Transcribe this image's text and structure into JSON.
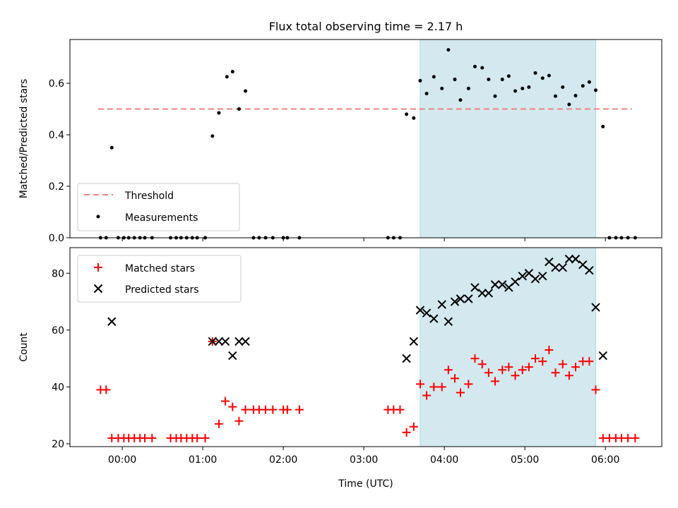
{
  "chart_data": {
    "title": "Flux total observing time = 2.17 h",
    "xlabel": "Time (UTC)",
    "x_ticks": [
      "00:00",
      "01:00",
      "02:00",
      "03:00",
      "04:00",
      "05:00",
      "06:00"
    ],
    "x_tick_hours": [
      0,
      1,
      2,
      3,
      4,
      5,
      6
    ],
    "xlim_hours": [
      -0.65,
      6.7
    ],
    "observing_window_hours": [
      3.7,
      5.88
    ],
    "window_color": "#d3e9ef",
    "panels": [
      {
        "type": "scatter",
        "ylabel": "Matched/Predicted stars",
        "ylim": [
          0,
          0.77
        ],
        "y_ticks": [
          0.0,
          0.2,
          0.4,
          0.6
        ],
        "y_tick_labels": [
          "0.0",
          "0.2",
          "0.4",
          "0.6"
        ],
        "legend": {
          "placement": "lower-left",
          "entries": [
            "Threshold",
            "Measurements"
          ]
        },
        "threshold": {
          "name": "Threshold",
          "value": 0.5,
          "x_range": [
            -0.3,
            6.33
          ],
          "color": "#f08080"
        },
        "series": [
          {
            "name": "Measurements",
            "color": "#000000",
            "marker": "dot",
            "points": [
              [
                -0.27,
                0
              ],
              [
                -0.2,
                0
              ],
              [
                -0.13,
                0.35
              ],
              [
                -0.05,
                0
              ],
              [
                0.02,
                0
              ],
              [
                0.08,
                0
              ],
              [
                0.15,
                0
              ],
              [
                0.22,
                0
              ],
              [
                0.28,
                0
              ],
              [
                0.37,
                0
              ],
              [
                0.6,
                0
              ],
              [
                0.67,
                0
              ],
              [
                0.73,
                0
              ],
              [
                0.8,
                0
              ],
              [
                0.87,
                0
              ],
              [
                0.93,
                0
              ],
              [
                1.03,
                0
              ],
              [
                1.12,
                0.395
              ],
              [
                1.2,
                0.485
              ],
              [
                1.3,
                0.625
              ],
              [
                1.37,
                0.645
              ],
              [
                1.45,
                0.5
              ],
              [
                1.53,
                0.57
              ],
              [
                1.63,
                0
              ],
              [
                1.7,
                0
              ],
              [
                1.78,
                0
              ],
              [
                1.87,
                0
              ],
              [
                2.0,
                0
              ],
              [
                2.05,
                0
              ],
              [
                2.2,
                0
              ],
              [
                3.3,
                0
              ],
              [
                3.37,
                0
              ],
              [
                3.45,
                0
              ],
              [
                3.53,
                0.48
              ],
              [
                3.62,
                0.465
              ],
              [
                3.7,
                0.61
              ],
              [
                3.78,
                0.56
              ],
              [
                3.87,
                0.625
              ],
              [
                3.97,
                0.58
              ],
              [
                4.05,
                0.73
              ],
              [
                4.13,
                0.615
              ],
              [
                4.2,
                0.535
              ],
              [
                4.3,
                0.58
              ],
              [
                4.38,
                0.665
              ],
              [
                4.47,
                0.66
              ],
              [
                4.55,
                0.615
              ],
              [
                4.63,
                0.55
              ],
              [
                4.72,
                0.615
              ],
              [
                4.8,
                0.628
              ],
              [
                4.88,
                0.57
              ],
              [
                4.97,
                0.58
              ],
              [
                5.05,
                0.585
              ],
              [
                5.13,
                0.64
              ],
              [
                5.22,
                0.62
              ],
              [
                5.3,
                0.63
              ],
              [
                5.38,
                0.55
              ],
              [
                5.47,
                0.585
              ],
              [
                5.55,
                0.518
              ],
              [
                5.63,
                0.552
              ],
              [
                5.72,
                0.59
              ],
              [
                5.8,
                0.605
              ],
              [
                5.88,
                0.573
              ],
              [
                5.97,
                0.432
              ],
              [
                6.05,
                0
              ],
              [
                6.13,
                0
              ],
              [
                6.2,
                0
              ],
              [
                6.28,
                0
              ],
              [
                6.37,
                0
              ]
            ]
          }
        ]
      },
      {
        "type": "scatter",
        "ylabel": "Count",
        "ylim": [
          19,
          89
        ],
        "y_ticks": [
          20,
          40,
          60,
          80
        ],
        "y_tick_labels": [
          "20",
          "40",
          "60",
          "80"
        ],
        "legend": {
          "placement": "upper-left",
          "entries": [
            "Matched stars",
            "Predicted stars"
          ]
        },
        "series": [
          {
            "name": "Matched stars",
            "color": "#ff0000",
            "marker": "plus",
            "points": [
              [
                -0.27,
                39
              ],
              [
                -0.2,
                39
              ],
              [
                -0.13,
                22
              ],
              [
                -0.05,
                22
              ],
              [
                0.02,
                22
              ],
              [
                0.08,
                22
              ],
              [
                0.15,
                22
              ],
              [
                0.22,
                22
              ],
              [
                0.28,
                22
              ],
              [
                0.37,
                22
              ],
              [
                0.6,
                22
              ],
              [
                0.67,
                22
              ],
              [
                0.73,
                22
              ],
              [
                0.8,
                22
              ],
              [
                0.87,
                22
              ],
              [
                0.93,
                22
              ],
              [
                1.03,
                22
              ],
              [
                1.12,
                56
              ],
              [
                1.2,
                27
              ],
              [
                1.28,
                35
              ],
              [
                1.37,
                33
              ],
              [
                1.45,
                28
              ],
              [
                1.53,
                32
              ],
              [
                1.63,
                32
              ],
              [
                1.7,
                32
              ],
              [
                1.78,
                32
              ],
              [
                1.87,
                32
              ],
              [
                2.0,
                32
              ],
              [
                2.05,
                32
              ],
              [
                2.2,
                32
              ],
              [
                3.3,
                32
              ],
              [
                3.37,
                32
              ],
              [
                3.45,
                32
              ],
              [
                3.53,
                24
              ],
              [
                3.62,
                26
              ],
              [
                3.7,
                41
              ],
              [
                3.78,
                37
              ],
              [
                3.87,
                40
              ],
              [
                3.97,
                40
              ],
              [
                4.05,
                46
              ],
              [
                4.13,
                43
              ],
              [
                4.2,
                38
              ],
              [
                4.3,
                41
              ],
              [
                4.38,
                50
              ],
              [
                4.47,
                48
              ],
              [
                4.55,
                45
              ],
              [
                4.63,
                42
              ],
              [
                4.72,
                46
              ],
              [
                4.8,
                47
              ],
              [
                4.88,
                44
              ],
              [
                4.97,
                46
              ],
              [
                5.05,
                47
              ],
              [
                5.13,
                50
              ],
              [
                5.22,
                49
              ],
              [
                5.3,
                53
              ],
              [
                5.38,
                45
              ],
              [
                5.47,
                48
              ],
              [
                5.55,
                44
              ],
              [
                5.63,
                47
              ],
              [
                5.72,
                49
              ],
              [
                5.8,
                49
              ],
              [
                5.88,
                39
              ],
              [
                5.97,
                22
              ],
              [
                6.05,
                22
              ],
              [
                6.13,
                22
              ],
              [
                6.2,
                22
              ],
              [
                6.28,
                22
              ],
              [
                6.37,
                22
              ]
            ]
          },
          {
            "name": "Predicted stars",
            "color": "#000000",
            "marker": "x",
            "points": [
              [
                -0.13,
                63
              ],
              [
                1.12,
                56
              ],
              [
                1.2,
                56
              ],
              [
                1.28,
                56
              ],
              [
                1.37,
                51
              ],
              [
                1.45,
                56
              ],
              [
                1.53,
                56
              ],
              [
                3.53,
                50
              ],
              [
                3.62,
                56
              ],
              [
                3.7,
                67
              ],
              [
                3.78,
                66
              ],
              [
                3.87,
                64
              ],
              [
                3.97,
                69
              ],
              [
                4.05,
                63
              ],
              [
                4.13,
                70
              ],
              [
                4.2,
                71
              ],
              [
                4.3,
                71
              ],
              [
                4.38,
                75
              ],
              [
                4.47,
                73
              ],
              [
                4.55,
                73
              ],
              [
                4.63,
                76
              ],
              [
                4.72,
                76
              ],
              [
                4.8,
                75
              ],
              [
                4.88,
                77
              ],
              [
                4.97,
                79
              ],
              [
                5.05,
                80
              ],
              [
                5.13,
                78
              ],
              [
                5.22,
                79
              ],
              [
                5.3,
                84
              ],
              [
                5.38,
                82
              ],
              [
                5.47,
                82
              ],
              [
                5.55,
                85
              ],
              [
                5.63,
                85
              ],
              [
                5.72,
                83
              ],
              [
                5.8,
                81
              ],
              [
                5.88,
                68
              ],
              [
                5.97,
                51
              ]
            ]
          }
        ]
      }
    ]
  }
}
